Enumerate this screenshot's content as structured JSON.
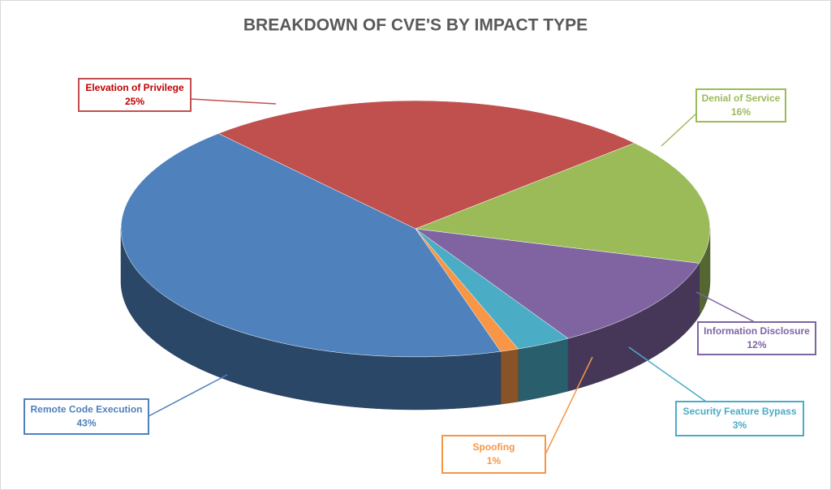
{
  "chart_data": {
    "type": "pie",
    "title": "BREAKDOWN OF CVE'S BY IMPACT TYPE",
    "categories": [
      "Elevation of Privilege",
      "Denial of Service",
      "Information Disclosure",
      "Security Feature Bypass",
      "Spoofing",
      "Remote Code Execution"
    ],
    "values": [
      25,
      16,
      12,
      3,
      1,
      43
    ],
    "value_labels": [
      "25%",
      "16%",
      "12%",
      "3%",
      "1%",
      "43%"
    ],
    "colors": [
      "#c0504d",
      "#9bbb59",
      "#8064a2",
      "#4bacc6",
      "#f79646",
      "#4f81bd"
    ]
  }
}
